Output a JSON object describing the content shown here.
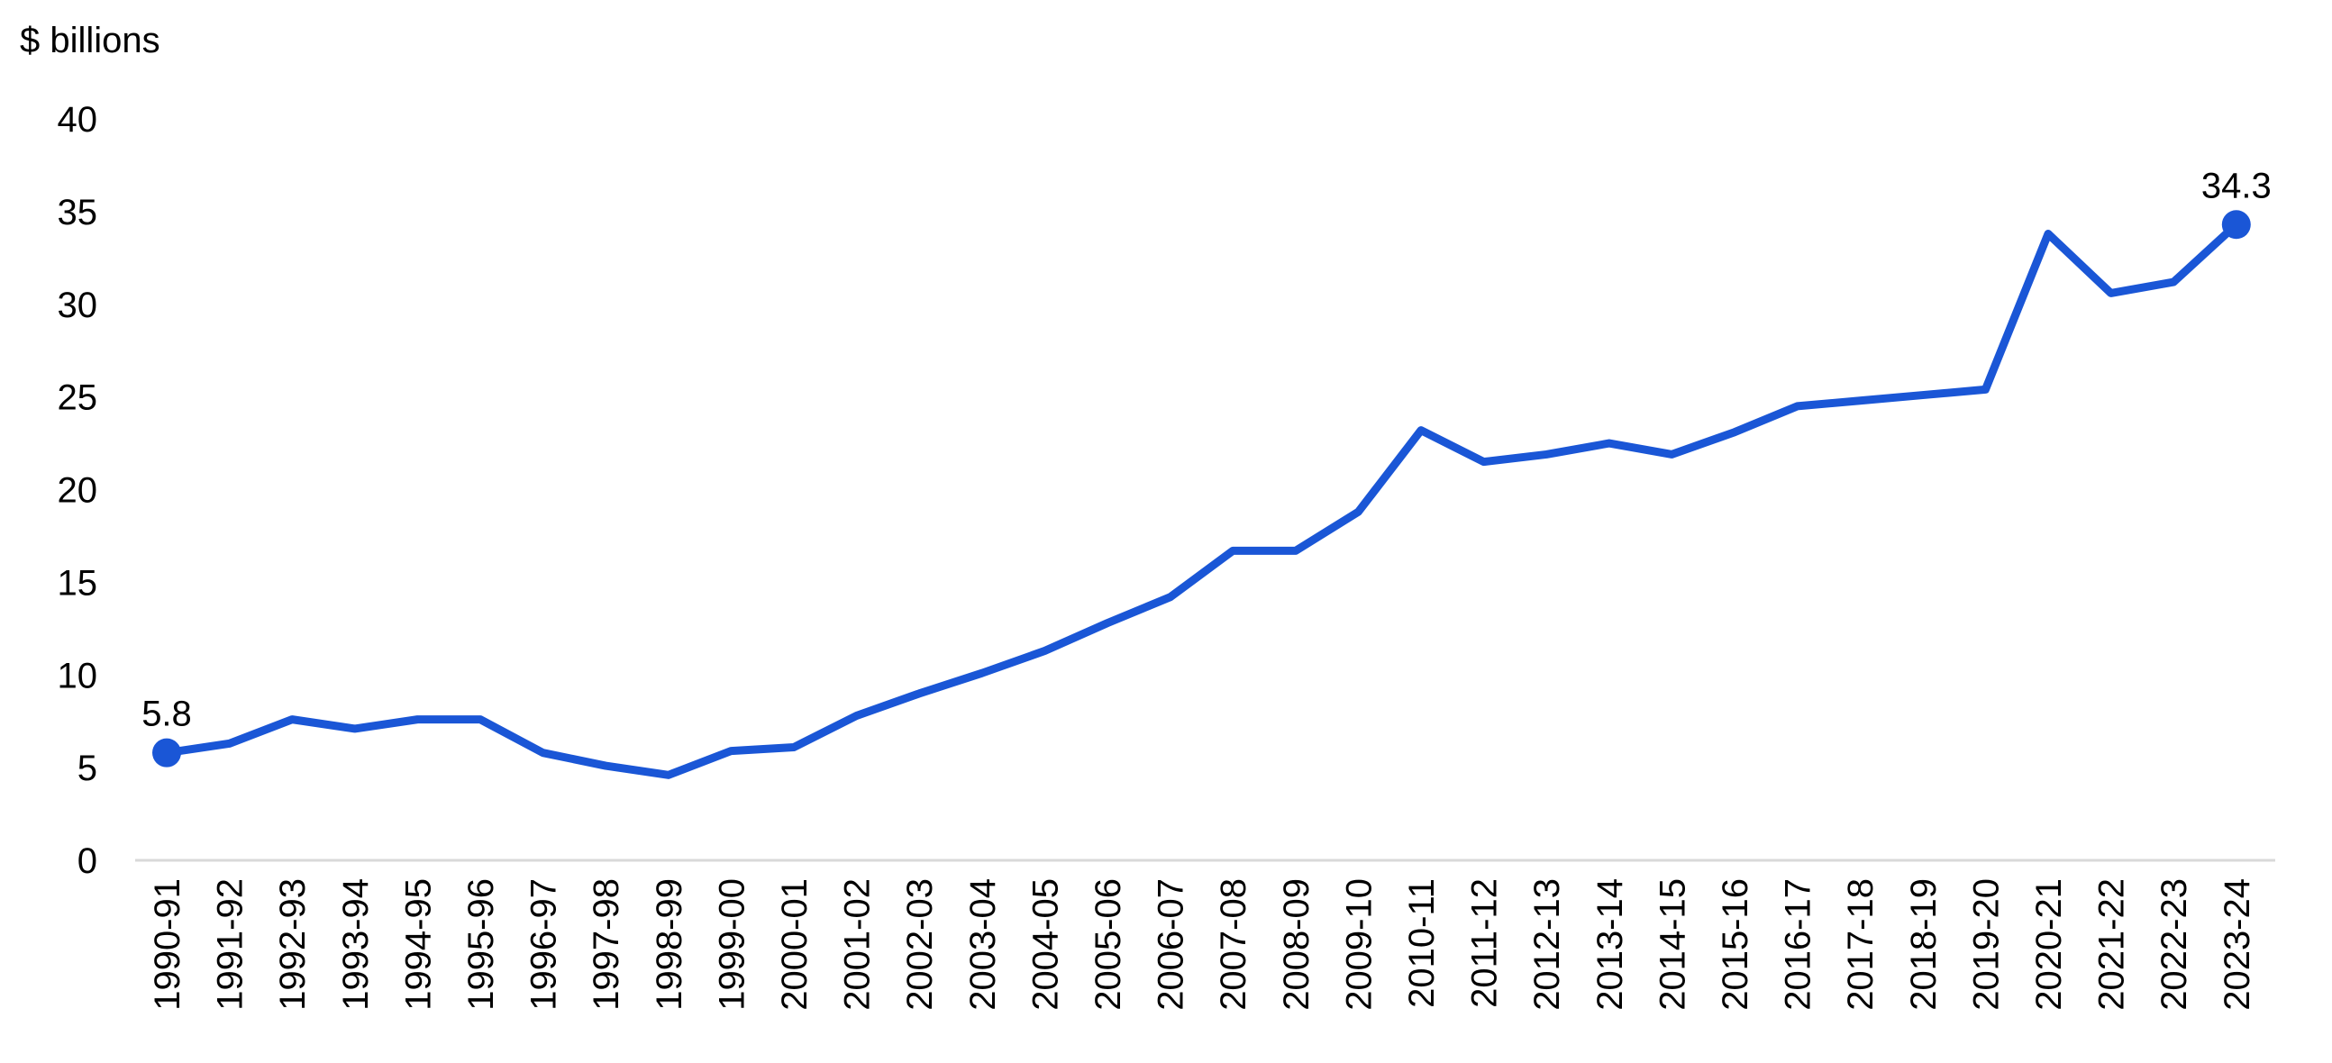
{
  "chart_data": {
    "type": "line",
    "ylabel": "$ billions",
    "xlabel": "",
    "ylim": [
      0,
      40
    ],
    "yticks": [
      0,
      5,
      10,
      15,
      20,
      25,
      30,
      35,
      40
    ],
    "grid": false,
    "categories": [
      "1990-91",
      "1991-92",
      "1992-93",
      "1993-94",
      "1994-95",
      "1995-96",
      "1996-97",
      "1997-98",
      "1998-99",
      "1999-00",
      "2000-01",
      "2001-02",
      "2002-03",
      "2003-04",
      "2004-05",
      "2005-06",
      "2006-07",
      "2007-08",
      "2008-09",
      "2009-10",
      "2010-11",
      "2011-12",
      "2012-13",
      "2013-14",
      "2014-15",
      "2015-16",
      "2016-17",
      "2017-18",
      "2018-19",
      "2019-20",
      "2020-21",
      "2021-22",
      "2022-23",
      "2023-24"
    ],
    "series": [
      {
        "values": [
          5.8,
          6.3,
          7.6,
          7.1,
          7.6,
          7.6,
          5.8,
          5.1,
          4.6,
          5.9,
          6.1,
          7.8,
          9.0,
          10.1,
          11.3,
          12.8,
          14.2,
          16.7,
          16.7,
          18.8,
          23.2,
          21.5,
          21.9,
          22.5,
          21.9,
          23.1,
          24.5,
          24.8,
          25.1,
          25.4,
          33.8,
          30.6,
          31.2,
          34.3
        ],
        "color": "#1a56d6"
      }
    ],
    "data_labels": [
      {
        "index": 0,
        "text": "5.8"
      },
      {
        "index": 33,
        "text": "34.3"
      }
    ],
    "axis_color": "#d9d9d9"
  }
}
